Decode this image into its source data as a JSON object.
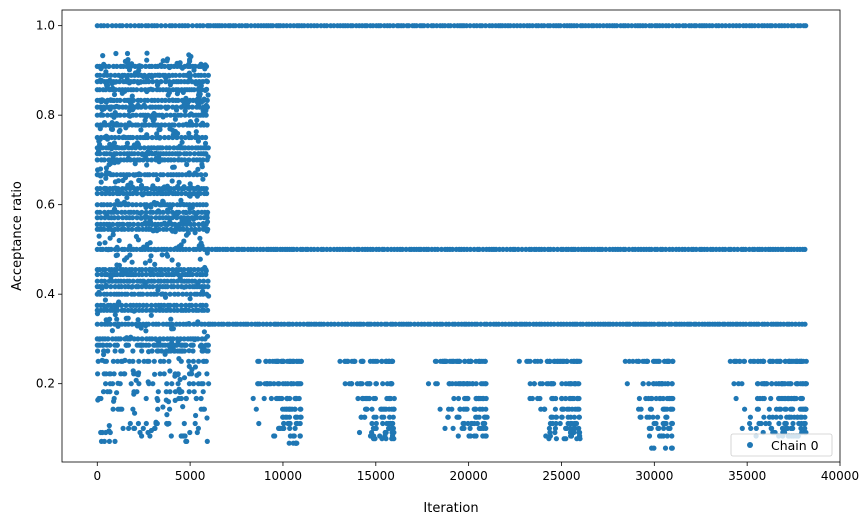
{
  "chart_data": {
    "type": "scatter",
    "title": "",
    "xlabel": "Iteration",
    "ylabel": "Acceptance ratio",
    "xlim": [
      -1900,
      40000
    ],
    "ylim": [
      0.025,
      1.035
    ],
    "xticks": [
      0,
      5000,
      10000,
      15000,
      20000,
      25000,
      30000,
      35000,
      40000
    ],
    "yticks": [
      0.2,
      0.4,
      0.6,
      0.8,
      1.0
    ],
    "xtick_labels": [
      "0",
      "5000",
      "10000",
      "15000",
      "20000",
      "25000",
      "30000",
      "35000",
      "40000"
    ],
    "ytick_labels": [
      "0.2",
      "0.4",
      "0.6",
      "0.8",
      "1.0"
    ],
    "grid": false,
    "legend_position": "bottom-right",
    "color": "#1f77b4",
    "series": [
      {
        "name": "Chain 0",
        "marker": "circle",
        "n_iterations": 38200,
        "segments": [
          {
            "x_range": [
              0,
              6000
            ],
            "dense_levels": [
              1.0,
              0.909,
              0.889,
              0.875,
              0.857,
              0.833,
              0.818,
              0.8,
              0.778,
              0.75,
              0.727,
              0.714,
              0.7,
              0.667,
              0.636,
              0.625,
              0.6,
              0.583,
              0.571,
              0.556,
              0.545,
              0.5,
              0.455,
              0.444,
              0.429,
              0.417,
              0.4,
              0.375,
              0.364,
              0.333,
              0.3
            ],
            "sparse_levels": [
              0.286,
              0.273,
              0.25,
              0.222,
              0.2,
              0.182,
              0.167,
              0.143,
              0.111,
              0.1,
              0.091,
              0.083,
              0.071
            ],
            "y_range": [
              0.07,
              0.94
            ]
          },
          {
            "x_range": [
              6000,
              38200
            ],
            "dense_levels": [
              1.0,
              0.5,
              0.333
            ]
          },
          {
            "x_range": [
              7000,
              11000
            ],
            "sparse_levels": [
              0.25,
              0.2,
              0.167,
              0.143,
              0.125,
              0.111,
              0.1,
              0.083,
              0.067
            ]
          },
          {
            "x_range": [
              12000,
              16000
            ],
            "sparse_levels": [
              0.25,
              0.2,
              0.167,
              0.143,
              0.125,
              0.111,
              0.1,
              0.091,
              0.083,
              0.077
            ]
          },
          {
            "x_range": [
              16500,
              21000
            ],
            "sparse_levels": [
              0.25,
              0.2,
              0.167,
              0.143,
              0.125,
              0.111,
              0.1,
              0.083
            ]
          },
          {
            "x_range": [
              21500,
              26000
            ],
            "sparse_levels": [
              0.25,
              0.2,
              0.167,
              0.143,
              0.125,
              0.111,
              0.1,
              0.091,
              0.083,
              0.077
            ]
          },
          {
            "x_range": [
              27500,
              31000
            ],
            "sparse_levels": [
              0.25,
              0.2,
              0.167,
              0.143,
              0.125,
              0.111,
              0.1,
              0.083,
              0.056
            ]
          },
          {
            "x_range": [
              32000,
              38200
            ],
            "sparse_levels": [
              0.25,
              0.2,
              0.167,
              0.143,
              0.125,
              0.111,
              0.1,
              0.091,
              0.083
            ]
          }
        ]
      }
    ]
  }
}
